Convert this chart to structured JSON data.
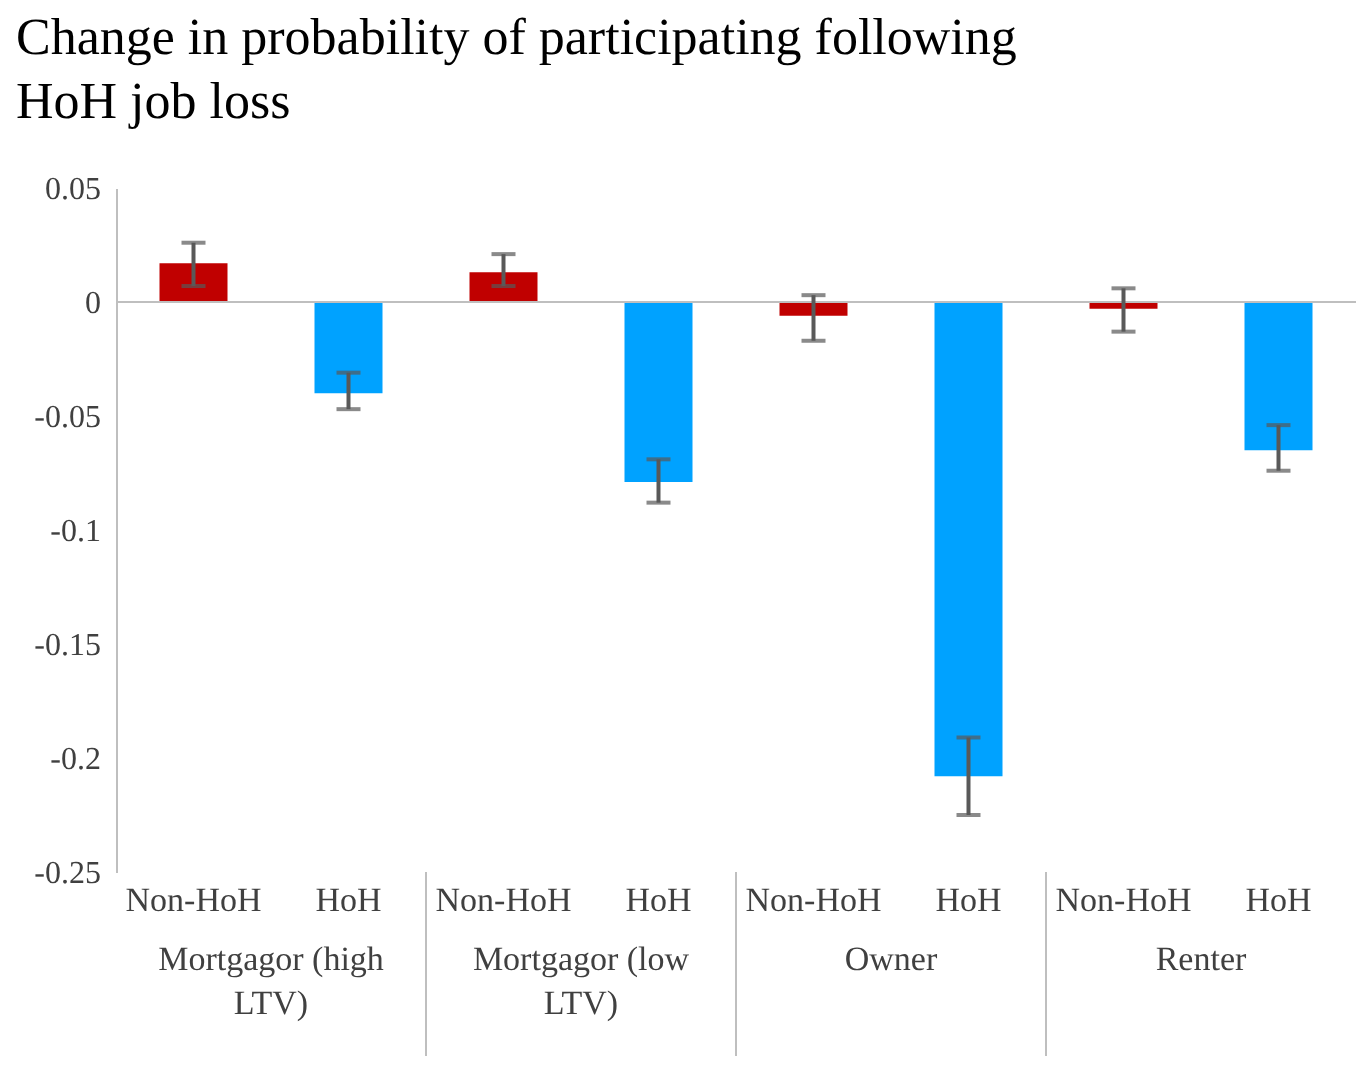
{
  "chart_data": {
    "type": "bar",
    "title": "Change in probability of participating following HoH job loss",
    "categories": [
      "Non-HoH",
      "HoH",
      "Non-HoH",
      "HoH",
      "Non-HoH",
      "HoH",
      "Non-HoH",
      "HoH"
    ],
    "values": [
      0.017,
      -0.04,
      0.013,
      -0.079,
      -0.006,
      -0.208,
      -0.003,
      -0.065
    ],
    "colors": [
      "#c00000",
      "#00a2ff",
      "#c00000",
      "#00a2ff",
      "#c00000",
      "#00a2ff",
      "#c00000",
      "#00a2ff"
    ],
    "errors": [
      [
        0.007,
        0.026
      ],
      [
        -0.047,
        -0.031
      ],
      [
        0.007,
        0.021
      ],
      [
        -0.088,
        -0.069
      ],
      [
        -0.017,
        0.003
      ],
      [
        -0.225,
        -0.191
      ],
      [
        -0.013,
        0.006
      ],
      [
        -0.074,
        -0.054
      ]
    ],
    "annotations": [
      "Mortgagor (high LTV)",
      "Mortgagor (low LTV)",
      "Owner",
      "Renter"
    ],
    "ylim": [
      -0.25,
      0.05
    ],
    "yticks": [
      0.05,
      0,
      -0.05,
      -0.1,
      -0.15,
      -0.2,
      -0.25
    ],
    "ref_lines": [
      {
        "axis": "y",
        "value": 0,
        "color": "#bfbfbf"
      }
    ]
  }
}
